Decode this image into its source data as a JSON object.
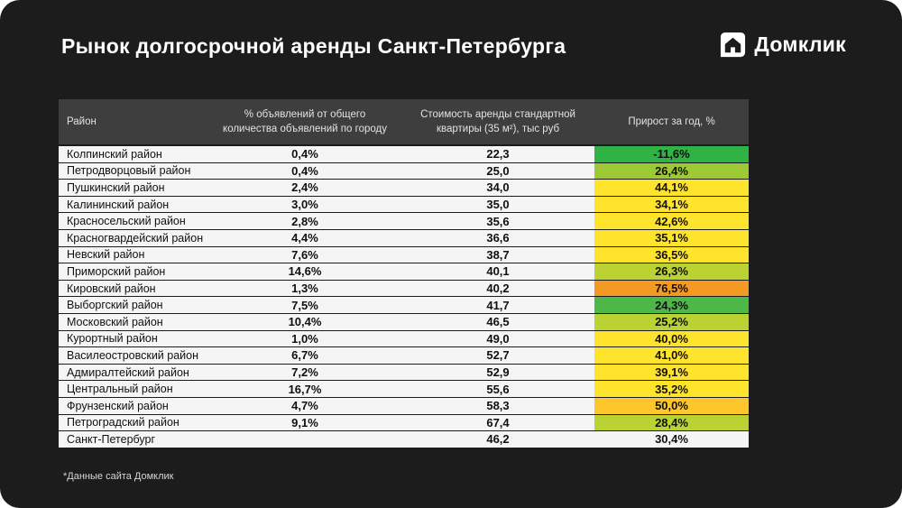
{
  "page": {
    "title": "Рынок долгосрочной аренды Санкт-Петербурга",
    "footnote": "*Данные сайта Домклик"
  },
  "logo": {
    "text": "Домклик",
    "icon": "domklik-house-icon"
  },
  "colors": {
    "card_bg": "#1c1c1c",
    "header_bg": "#3e3e3e",
    "row_bg": "#f5f5f5",
    "green": "#2fb344",
    "light_green": "#9dca34",
    "yellow_green": "#bad333",
    "yellow": "#fee42d",
    "amber": "#fcc62c",
    "orange": "#f49a23"
  },
  "table": {
    "headers": [
      "Район",
      "% объявлений от общего\nколичества объявлений по городу",
      "Стоимость аренды стандартной\nквартиры (35 м²), тыс руб",
      "Прирост за год, %"
    ],
    "rows": [
      {
        "district": "Колпинский район",
        "share": "0,4%",
        "price": "22,3",
        "growth": "-11,6%",
        "growth_color": "#2fb344",
        "is_total": false
      },
      {
        "district": "Петродворцовый район",
        "share": "0,4%",
        "price": "25,0",
        "growth": "26,4%",
        "growth_color": "#9dca34",
        "is_total": false
      },
      {
        "district": "Пушкинский район",
        "share": "2,4%",
        "price": "34,0",
        "growth": "44,1%",
        "growth_color": "#fee42d",
        "is_total": false
      },
      {
        "district": "Калининский район",
        "share": "3,0%",
        "price": "35,0",
        "growth": "34,1%",
        "growth_color": "#fee42d",
        "is_total": false
      },
      {
        "district": "Красносельский район",
        "share": "2,8%",
        "price": "35,6",
        "growth": "42,6%",
        "growth_color": "#fee42d",
        "is_total": false
      },
      {
        "district": "Красногвардейский район",
        "share": "4,4%",
        "price": "36,6",
        "growth": "35,1%",
        "growth_color": "#fee42d",
        "is_total": false
      },
      {
        "district": "Невский район",
        "share": "7,6%",
        "price": "38,7",
        "growth": "36,5%",
        "growth_color": "#fee42d",
        "is_total": false
      },
      {
        "district": "Приморский район",
        "share": "14,6%",
        "price": "40,1",
        "growth": "26,3%",
        "growth_color": "#bad333",
        "is_total": false
      },
      {
        "district": "Кировский район",
        "share": "1,3%",
        "price": "40,2",
        "growth": "76,5%",
        "growth_color": "#f49a23",
        "is_total": false
      },
      {
        "district": "Выборгский район",
        "share": "7,5%",
        "price": "41,7",
        "growth": "24,3%",
        "growth_color": "#4db748",
        "is_total": false
      },
      {
        "district": "Московский район",
        "share": "10,4%",
        "price": "46,5",
        "growth": "25,2%",
        "growth_color": "#bad333",
        "is_total": false
      },
      {
        "district": "Курортный район",
        "share": "1,0%",
        "price": "49,0",
        "growth": "40,0%",
        "growth_color": "#fee42d",
        "is_total": false
      },
      {
        "district": "Василеостровский район",
        "share": "6,7%",
        "price": "52,7",
        "growth": "41,0%",
        "growth_color": "#fee42d",
        "is_total": false
      },
      {
        "district": "Адмиралтейский район",
        "share": "7,2%",
        "price": "52,9",
        "growth": "39,1%",
        "growth_color": "#fee42d",
        "is_total": false
      },
      {
        "district": "Центральный район",
        "share": "16,7%",
        "price": "55,6",
        "growth": "35,2%",
        "growth_color": "#fee42d",
        "is_total": false
      },
      {
        "district": "Фрунзенский район",
        "share": "4,7%",
        "price": "58,3",
        "growth": "50,0%",
        "growth_color": "#fcc62c",
        "is_total": false
      },
      {
        "district": "Петроградский район",
        "share": "9,1%",
        "price": "67,4",
        "growth": "28,4%",
        "growth_color": "#bad333",
        "is_total": false
      },
      {
        "district": "Санкт-Петербург",
        "share": "",
        "price": "46,2",
        "growth": "30,4%",
        "growth_color": "",
        "is_total": true
      }
    ]
  },
  "chart_data": {
    "type": "table",
    "title": "Рынок долгосрочной аренды Санкт-Петербурга",
    "columns": [
      "Район",
      "% объявлений от общего количества объявлений по городу",
      "Стоимость аренды стандартной квартиры (35 м²), тыс руб",
      "Прирост за год, %"
    ],
    "rows": [
      [
        "Колпинский район",
        0.4,
        22.3,
        -11.6
      ],
      [
        "Петродворцовый район",
        0.4,
        25.0,
        26.4
      ],
      [
        "Пушкинский район",
        2.4,
        34.0,
        44.1
      ],
      [
        "Калининский район",
        3.0,
        35.0,
        34.1
      ],
      [
        "Красносельский район",
        2.8,
        35.6,
        42.6
      ],
      [
        "Красногвардейский район",
        4.4,
        36.6,
        35.1
      ],
      [
        "Невский район",
        7.6,
        38.7,
        36.5
      ],
      [
        "Приморский район",
        14.6,
        40.1,
        26.3
      ],
      [
        "Кировский район",
        1.3,
        40.2,
        76.5
      ],
      [
        "Выборгский район",
        7.5,
        41.7,
        24.3
      ],
      [
        "Московский район",
        10.4,
        46.5,
        25.2
      ],
      [
        "Курортный район",
        1.0,
        49.0,
        40.0
      ],
      [
        "Василеостровский район",
        6.7,
        52.7,
        41.0
      ],
      [
        "Адмиралтейский район",
        7.2,
        52.9,
        39.1
      ],
      [
        "Центральный район",
        16.7,
        55.6,
        35.2
      ],
      [
        "Фрунзенский район",
        4.7,
        58.3,
        50.0
      ],
      [
        "Петроградский район",
        9.1,
        67.4,
        28.4
      ],
      [
        "Санкт-Петербург",
        null,
        46.2,
        30.4
      ]
    ],
    "source_note": "*Данные сайта Домклик"
  }
}
